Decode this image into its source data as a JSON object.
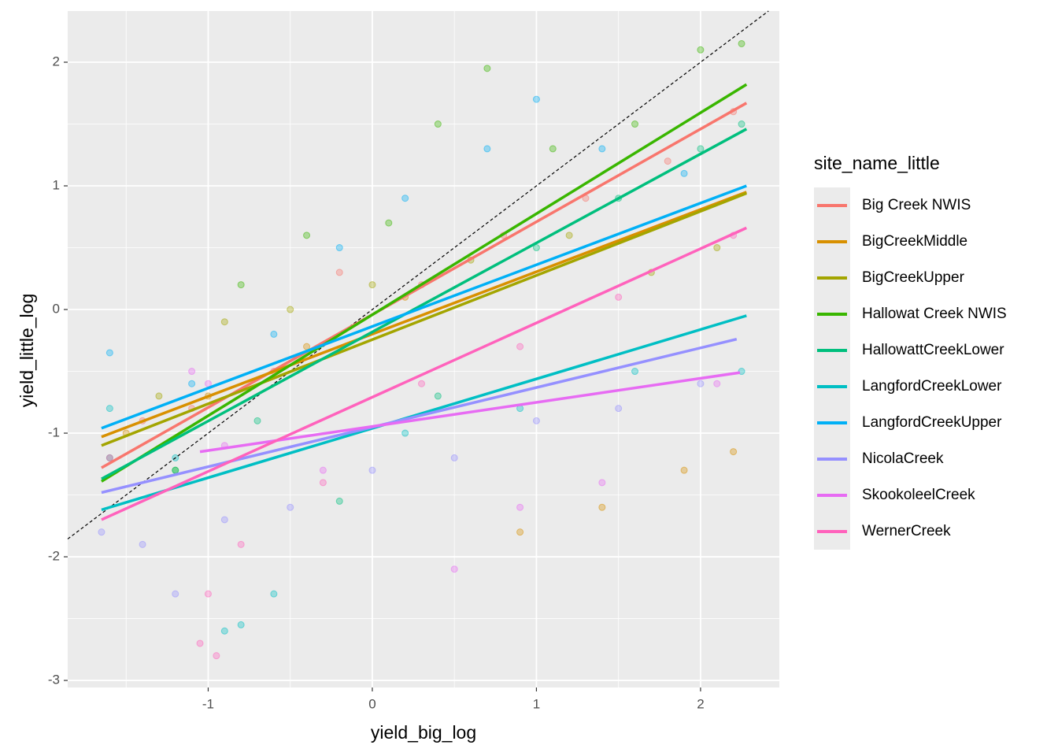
{
  "chart_data": {
    "type": "scatter",
    "x_label": "yield_big_log",
    "y_label": "yield_little_log",
    "legend_title": "site_name_little",
    "legend": "right",
    "grid": true,
    "identity_line": true,
    "xlim": [
      -1.856,
      2.48
    ],
    "ylim": [
      -3.057,
      2.414
    ],
    "xticks": [
      -1,
      0,
      1,
      2
    ],
    "yticks": [
      -3,
      -2,
      -1,
      0,
      1,
      2
    ],
    "xminor": [
      -1.5,
      -0.5,
      0.5,
      1.5
    ],
    "yminor": [
      -2.5,
      -1.5,
      -0.5,
      0.5,
      1.5
    ],
    "series": [
      {
        "name": "Big Creek NWIS",
        "color": "#F8766D",
        "x": [
          -1.65,
          2.28
        ],
        "values": [
          -1.28,
          1.67
        ],
        "points_x": [
          -1.4,
          -1.1,
          -0.6,
          -0.2,
          0.3,
          0.8,
          1.3,
          1.8,
          2.2
        ],
        "points_y": [
          -0.9,
          -0.8,
          -0.5,
          0.3,
          0.2,
          0.6,
          0.9,
          1.2,
          1.6
        ]
      },
      {
        "name": "BigCreekMiddle",
        "color": "#D89000",
        "x": [
          -1.65,
          2.28
        ],
        "values": [
          -1.03,
          0.95
        ],
        "points_x": [
          -1.5,
          -1.0,
          -0.4,
          0.2,
          0.9,
          1.4,
          1.9,
          2.2
        ],
        "points_y": [
          -1.0,
          -0.7,
          -0.3,
          0.1,
          -1.8,
          -1.6,
          -1.3,
          -1.15
        ]
      },
      {
        "name": "BigCreekUpper",
        "color": "#A3A500",
        "x": [
          -1.65,
          2.28
        ],
        "values": [
          -1.1,
          0.94
        ],
        "points_x": [
          -1.3,
          -0.9,
          -0.5,
          0.0,
          0.6,
          1.2,
          1.7,
          2.1
        ],
        "points_y": [
          -0.7,
          -0.1,
          0.0,
          0.2,
          0.4,
          0.6,
          0.3,
          0.5
        ]
      },
      {
        "name": "Hallowat Creek NWIS",
        "color": "#39B600",
        "x": [
          -1.65,
          2.28
        ],
        "values": [
          -1.39,
          1.82
        ],
        "points_x": [
          -1.2,
          -0.8,
          -0.4,
          0.1,
          0.4,
          0.7,
          1.1,
          1.6,
          2.0,
          2.25
        ],
        "points_y": [
          -1.3,
          0.2,
          0.6,
          0.7,
          1.5,
          1.95,
          1.3,
          1.5,
          2.1,
          2.15
        ]
      },
      {
        "name": "HallowattCreekLower",
        "color": "#00BF7D",
        "x": [
          -1.65,
          2.28
        ],
        "values": [
          -1.37,
          1.46
        ],
        "points_x": [
          -1.6,
          -1.2,
          -0.7,
          -0.2,
          0.4,
          1.0,
          1.5,
          2.0,
          2.25
        ],
        "points_y": [
          -1.2,
          -1.3,
          -0.9,
          -1.55,
          -0.7,
          0.5,
          0.9,
          1.3,
          1.5
        ]
      },
      {
        "name": "LangfordCreekLower",
        "color": "#00BFC4",
        "x": [
          -1.65,
          2.28
        ],
        "values": [
          -1.62,
          -0.05
        ],
        "points_x": [
          -1.6,
          -1.2,
          -0.9,
          -0.8,
          -0.6,
          0.2,
          0.9,
          1.6,
          2.25
        ],
        "points_y": [
          -0.8,
          -1.2,
          -2.6,
          -2.55,
          -2.3,
          -1.0,
          -0.8,
          -0.5,
          -0.5
        ]
      },
      {
        "name": "LangfordCreekUpper",
        "color": "#00B0F6",
        "x": [
          -1.65,
          2.28
        ],
        "values": [
          -0.96,
          1.0
        ],
        "points_x": [
          -1.6,
          -1.1,
          -0.6,
          -0.2,
          0.2,
          0.7,
          1.0,
          1.4,
          1.9
        ],
        "points_y": [
          -0.35,
          -0.6,
          -0.2,
          0.5,
          0.9,
          1.3,
          1.7,
          1.3,
          1.1
        ]
      },
      {
        "name": "NicolaCreek",
        "color": "#9590FF",
        "x": [
          -1.65,
          2.22
        ],
        "values": [
          -1.48,
          -0.24
        ],
        "points_x": [
          -1.65,
          -1.4,
          -1.2,
          -0.9,
          -0.5,
          0.0,
          0.5,
          1.0,
          1.5,
          2.0
        ],
        "points_y": [
          -1.8,
          -1.9,
          -2.3,
          -1.7,
          -1.6,
          -1.3,
          -1.2,
          -0.9,
          -0.8,
          -0.6
        ]
      },
      {
        "name": "SkookoleelCreek",
        "color": "#E76BF3",
        "x": [
          -1.05,
          2.24
        ],
        "values": [
          -1.15,
          -0.51
        ],
        "points_x": [
          -1.1,
          -1.0,
          -0.9,
          -0.3,
          0.5,
          0.9,
          1.4,
          2.1
        ],
        "points_y": [
          -0.5,
          -0.6,
          -1.1,
          -1.3,
          -2.1,
          -1.6,
          -1.4,
          -0.6
        ]
      },
      {
        "name": "WernerCreek",
        "color": "#FF62BC",
        "x": [
          -1.65,
          2.28
        ],
        "values": [
          -1.7,
          0.66
        ],
        "points_x": [
          -1.6,
          -1.05,
          -1.0,
          -0.95,
          -0.8,
          -0.3,
          0.3,
          0.9,
          1.5,
          2.2
        ],
        "points_y": [
          -1.2,
          -2.7,
          -2.3,
          -2.8,
          -1.9,
          -1.4,
          -0.6,
          -0.3,
          0.1,
          0.6
        ]
      }
    ]
  }
}
